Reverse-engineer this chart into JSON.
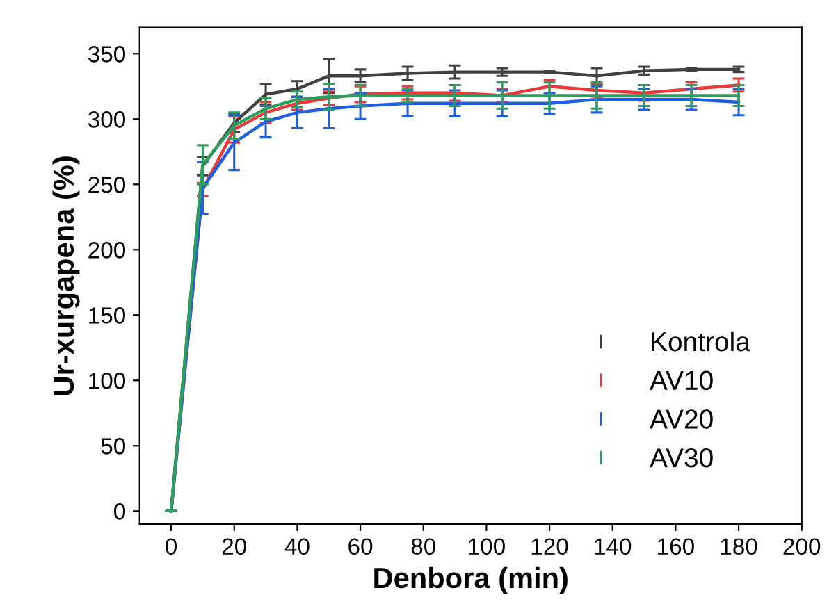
{
  "chart_data": {
    "type": "line",
    "xlabel": "Denbora (min)",
    "ylabel": "Ur-xurgapena (%)",
    "x": [
      0,
      10,
      20,
      30,
      40,
      50,
      60,
      75,
      90,
      105,
      120,
      135,
      150,
      165,
      180
    ],
    "series": [
      {
        "name": "Kontrola",
        "color": "#404040",
        "values": [
          0,
          264,
          297,
          319,
          323,
          333,
          333,
          335,
          336,
          336,
          336,
          333,
          337,
          338,
          338
        ],
        "errors": [
          0,
          7,
          7,
          8,
          6,
          13,
          5,
          5,
          5,
          3,
          1,
          6,
          3,
          1,
          2
        ]
      },
      {
        "name": "AV10",
        "color": "#e8393b",
        "values": [
          0,
          246,
          292,
          305,
          312,
          316,
          319,
          320,
          320,
          318,
          325,
          322,
          320,
          323,
          326
        ],
        "errors": [
          0,
          5,
          10,
          8,
          5,
          5,
          6,
          5,
          6,
          5,
          5,
          5,
          6,
          5,
          5
        ]
      },
      {
        "name": "AV20",
        "color": "#1f5fe0",
        "values": [
          0,
          247,
          282,
          298,
          305,
          308,
          310,
          312,
          312,
          312,
          312,
          315,
          315,
          315,
          313
        ],
        "errors": [
          0,
          20,
          21,
          12,
          12,
          15,
          10,
          10,
          10,
          10,
          8,
          10,
          8,
          8,
          10
        ]
      },
      {
        "name": "AV30",
        "color": "#2e9e5e",
        "values": [
          0,
          265,
          295,
          308,
          315,
          317,
          318,
          318,
          318,
          318,
          318,
          318,
          318,
          318,
          318
        ],
        "errors": [
          0,
          15,
          10,
          8,
          6,
          10,
          8,
          5,
          8,
          10,
          10,
          10,
          8,
          8,
          8
        ]
      }
    ],
    "xlim": [
      -10,
      200
    ],
    "xticks": [
      0,
      20,
      40,
      60,
      80,
      100,
      120,
      140,
      160,
      180,
      200
    ],
    "ylim": [
      -10,
      370
    ],
    "yticks": [
      0,
      50,
      100,
      150,
      200,
      250,
      300,
      350
    ],
    "grid": false,
    "legend": "bottom right",
    "marker": "none",
    "line_style": "solid"
  }
}
